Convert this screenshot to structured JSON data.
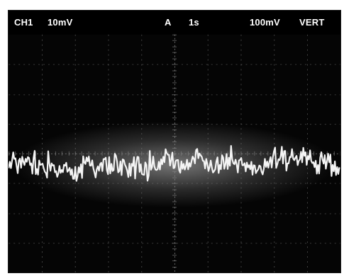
{
  "readouts": {
    "channel": "CH1",
    "channel_scale": "10mV",
    "trigger_source": "A",
    "timebase": "1s",
    "vertical_range": "100mV",
    "vertical_mode": "VERT"
  },
  "colors": {
    "screen_background": "#050505",
    "trace": "#f4f4f4",
    "graticule": "#8a8a8a",
    "readout_text": "#ffffff"
  },
  "graticule": {
    "major_divisions_x": 10,
    "major_divisions_y": 8,
    "minor_ticks_per_division": 5,
    "style": "dashed"
  },
  "signal": {
    "type": "noise",
    "seed": 1337
  }
}
